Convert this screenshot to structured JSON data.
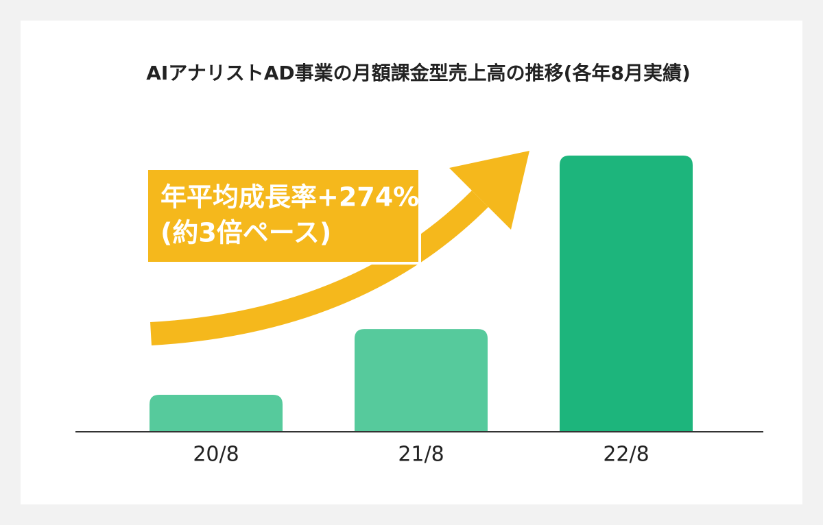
{
  "chart_data": {
    "type": "bar",
    "title": "AIアナリストAD事業の月額課金型売上高の推移(各年8月実績)",
    "annotation": [
      "年平均成長率+274%",
      "(約3倍ペース)"
    ],
    "categories": [
      "20/8",
      "21/8",
      "22/8"
    ],
    "values": [
      13.4,
      37.2,
      100
    ],
    "colors": [
      "#56ca9c",
      "#56ca9c",
      "#1db57c"
    ],
    "ylim": [
      0,
      100
    ]
  }
}
